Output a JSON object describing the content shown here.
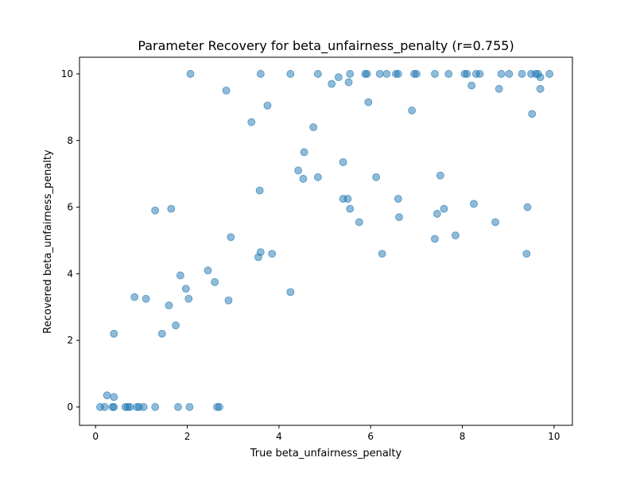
{
  "chart_data": {
    "type": "scatter",
    "title": "Parameter Recovery for beta_unfairness_penalty (r=0.755)",
    "xlabel": "True beta_unfairness_penalty",
    "ylabel": "Recovered beta_unfairness_penalty",
    "xlim": [
      -0.35,
      10.4
    ],
    "ylim": [
      -0.55,
      10.5
    ],
    "xticks": [
      0,
      2,
      4,
      6,
      8,
      10
    ],
    "yticks": [
      0,
      2,
      4,
      6,
      8,
      10
    ],
    "grid": false,
    "point_color": "#1f77b4",
    "point_alpha": 0.5,
    "points": [
      [
        0.1,
        0.0
      ],
      [
        0.2,
        0.0
      ],
      [
        0.25,
        0.35
      ],
      [
        0.37,
        0.0
      ],
      [
        0.4,
        0.0
      ],
      [
        0.4,
        0.3
      ],
      [
        0.4,
        2.2
      ],
      [
        0.65,
        0.0
      ],
      [
        0.7,
        0.0
      ],
      [
        0.75,
        0.0
      ],
      [
        0.85,
        3.3
      ],
      [
        0.9,
        0.0
      ],
      [
        0.95,
        0.0
      ],
      [
        1.05,
        0.0
      ],
      [
        1.1,
        3.25
      ],
      [
        1.3,
        5.9
      ],
      [
        1.3,
        0.0
      ],
      [
        1.45,
        2.2
      ],
      [
        1.6,
        3.05
      ],
      [
        1.65,
        5.95
      ],
      [
        1.75,
        2.45
      ],
      [
        1.8,
        0.0
      ],
      [
        1.85,
        3.95
      ],
      [
        1.97,
        3.55
      ],
      [
        2.03,
        3.25
      ],
      [
        2.05,
        0.0
      ],
      [
        2.07,
        10.0
      ],
      [
        2.45,
        4.1
      ],
      [
        2.6,
        3.75
      ],
      [
        2.65,
        0.0
      ],
      [
        2.7,
        0.0
      ],
      [
        2.85,
        9.5
      ],
      [
        2.9,
        3.2
      ],
      [
        2.95,
        5.1
      ],
      [
        3.4,
        8.55
      ],
      [
        3.55,
        4.5
      ],
      [
        3.58,
        6.5
      ],
      [
        3.6,
        4.65
      ],
      [
        3.6,
        10.0
      ],
      [
        3.75,
        9.05
      ],
      [
        3.85,
        4.6
      ],
      [
        4.25,
        3.45
      ],
      [
        4.25,
        10.0
      ],
      [
        4.42,
        7.1
      ],
      [
        4.53,
        6.85
      ],
      [
        4.55,
        7.65
      ],
      [
        4.75,
        8.4
      ],
      [
        4.85,
        10.0
      ],
      [
        4.85,
        6.9
      ],
      [
        5.15,
        9.7
      ],
      [
        5.3,
        9.9
      ],
      [
        5.4,
        7.35
      ],
      [
        5.4,
        6.25
      ],
      [
        5.5,
        6.25
      ],
      [
        5.52,
        9.75
      ],
      [
        5.55,
        5.95
      ],
      [
        5.55,
        10.0
      ],
      [
        5.75,
        5.55
      ],
      [
        5.88,
        10.0
      ],
      [
        5.92,
        10.0
      ],
      [
        5.95,
        9.15
      ],
      [
        6.12,
        6.9
      ],
      [
        6.2,
        10.0
      ],
      [
        6.25,
        4.6
      ],
      [
        6.35,
        10.0
      ],
      [
        6.55,
        10.0
      ],
      [
        6.6,
        10.0
      ],
      [
        6.6,
        6.25
      ],
      [
        6.62,
        5.7
      ],
      [
        6.9,
        8.9
      ],
      [
        6.95,
        10.0
      ],
      [
        7.0,
        10.0
      ],
      [
        7.4,
        10.0
      ],
      [
        7.4,
        5.05
      ],
      [
        7.45,
        5.8
      ],
      [
        7.52,
        6.95
      ],
      [
        7.6,
        5.95
      ],
      [
        7.7,
        10.0
      ],
      [
        7.85,
        5.15
      ],
      [
        8.05,
        10.0
      ],
      [
        8.1,
        10.0
      ],
      [
        8.2,
        9.65
      ],
      [
        8.25,
        6.1
      ],
      [
        8.3,
        10.0
      ],
      [
        8.38,
        10.0
      ],
      [
        8.72,
        5.55
      ],
      [
        8.8,
        9.55
      ],
      [
        8.85,
        10.0
      ],
      [
        9.02,
        10.0
      ],
      [
        9.3,
        10.0
      ],
      [
        9.4,
        4.6
      ],
      [
        9.42,
        6.0
      ],
      [
        9.5,
        10.0
      ],
      [
        9.52,
        8.8
      ],
      [
        9.6,
        10.0
      ],
      [
        9.65,
        10.0
      ],
      [
        9.7,
        9.9
      ],
      [
        9.7,
        9.55
      ],
      [
        9.9,
        10.0
      ]
    ]
  }
}
